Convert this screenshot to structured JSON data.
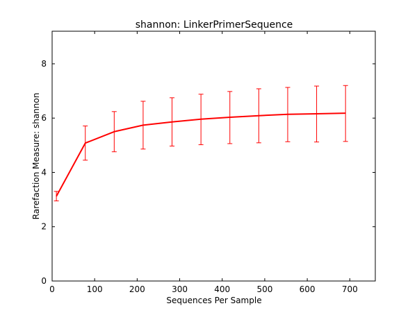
{
  "chart_data": {
    "type": "line",
    "title": "shannon: LinkerPrimerSequence",
    "xlabel": "Sequences Per Sample",
    "ylabel": "Rarefaction Measure: shannon",
    "xlim": [
      0,
      760
    ],
    "ylim": [
      0,
      9.2
    ],
    "x_ticks": [
      0,
      100,
      200,
      300,
      400,
      500,
      600,
      700
    ],
    "y_ticks": [
      0,
      2,
      4,
      6,
      8
    ],
    "x_tick_labels": [
      "0",
      "100",
      "200",
      "300",
      "400",
      "500",
      "600",
      "700"
    ],
    "y_tick_labels": [
      "0",
      "2",
      "4",
      "6",
      "8"
    ],
    "grid": false,
    "series": [
      {
        "color": "#ff0000",
        "x": [
          10,
          78,
          146,
          214,
          282,
          350,
          418,
          486,
          554,
          622,
          690
        ],
        "y": [
          3.12,
          5.08,
          5.5,
          5.74,
          5.86,
          5.96,
          6.03,
          6.09,
          6.14,
          6.16,
          6.18
        ],
        "err_low": [
          2.95,
          4.45,
          4.76,
          4.86,
          4.97,
          5.02,
          5.06,
          5.09,
          5.13,
          5.12,
          5.14
        ],
        "err_high": [
          3.3,
          5.71,
          6.24,
          6.62,
          6.75,
          6.88,
          6.98,
          7.08,
          7.13,
          7.18,
          7.2
        ]
      }
    ]
  }
}
